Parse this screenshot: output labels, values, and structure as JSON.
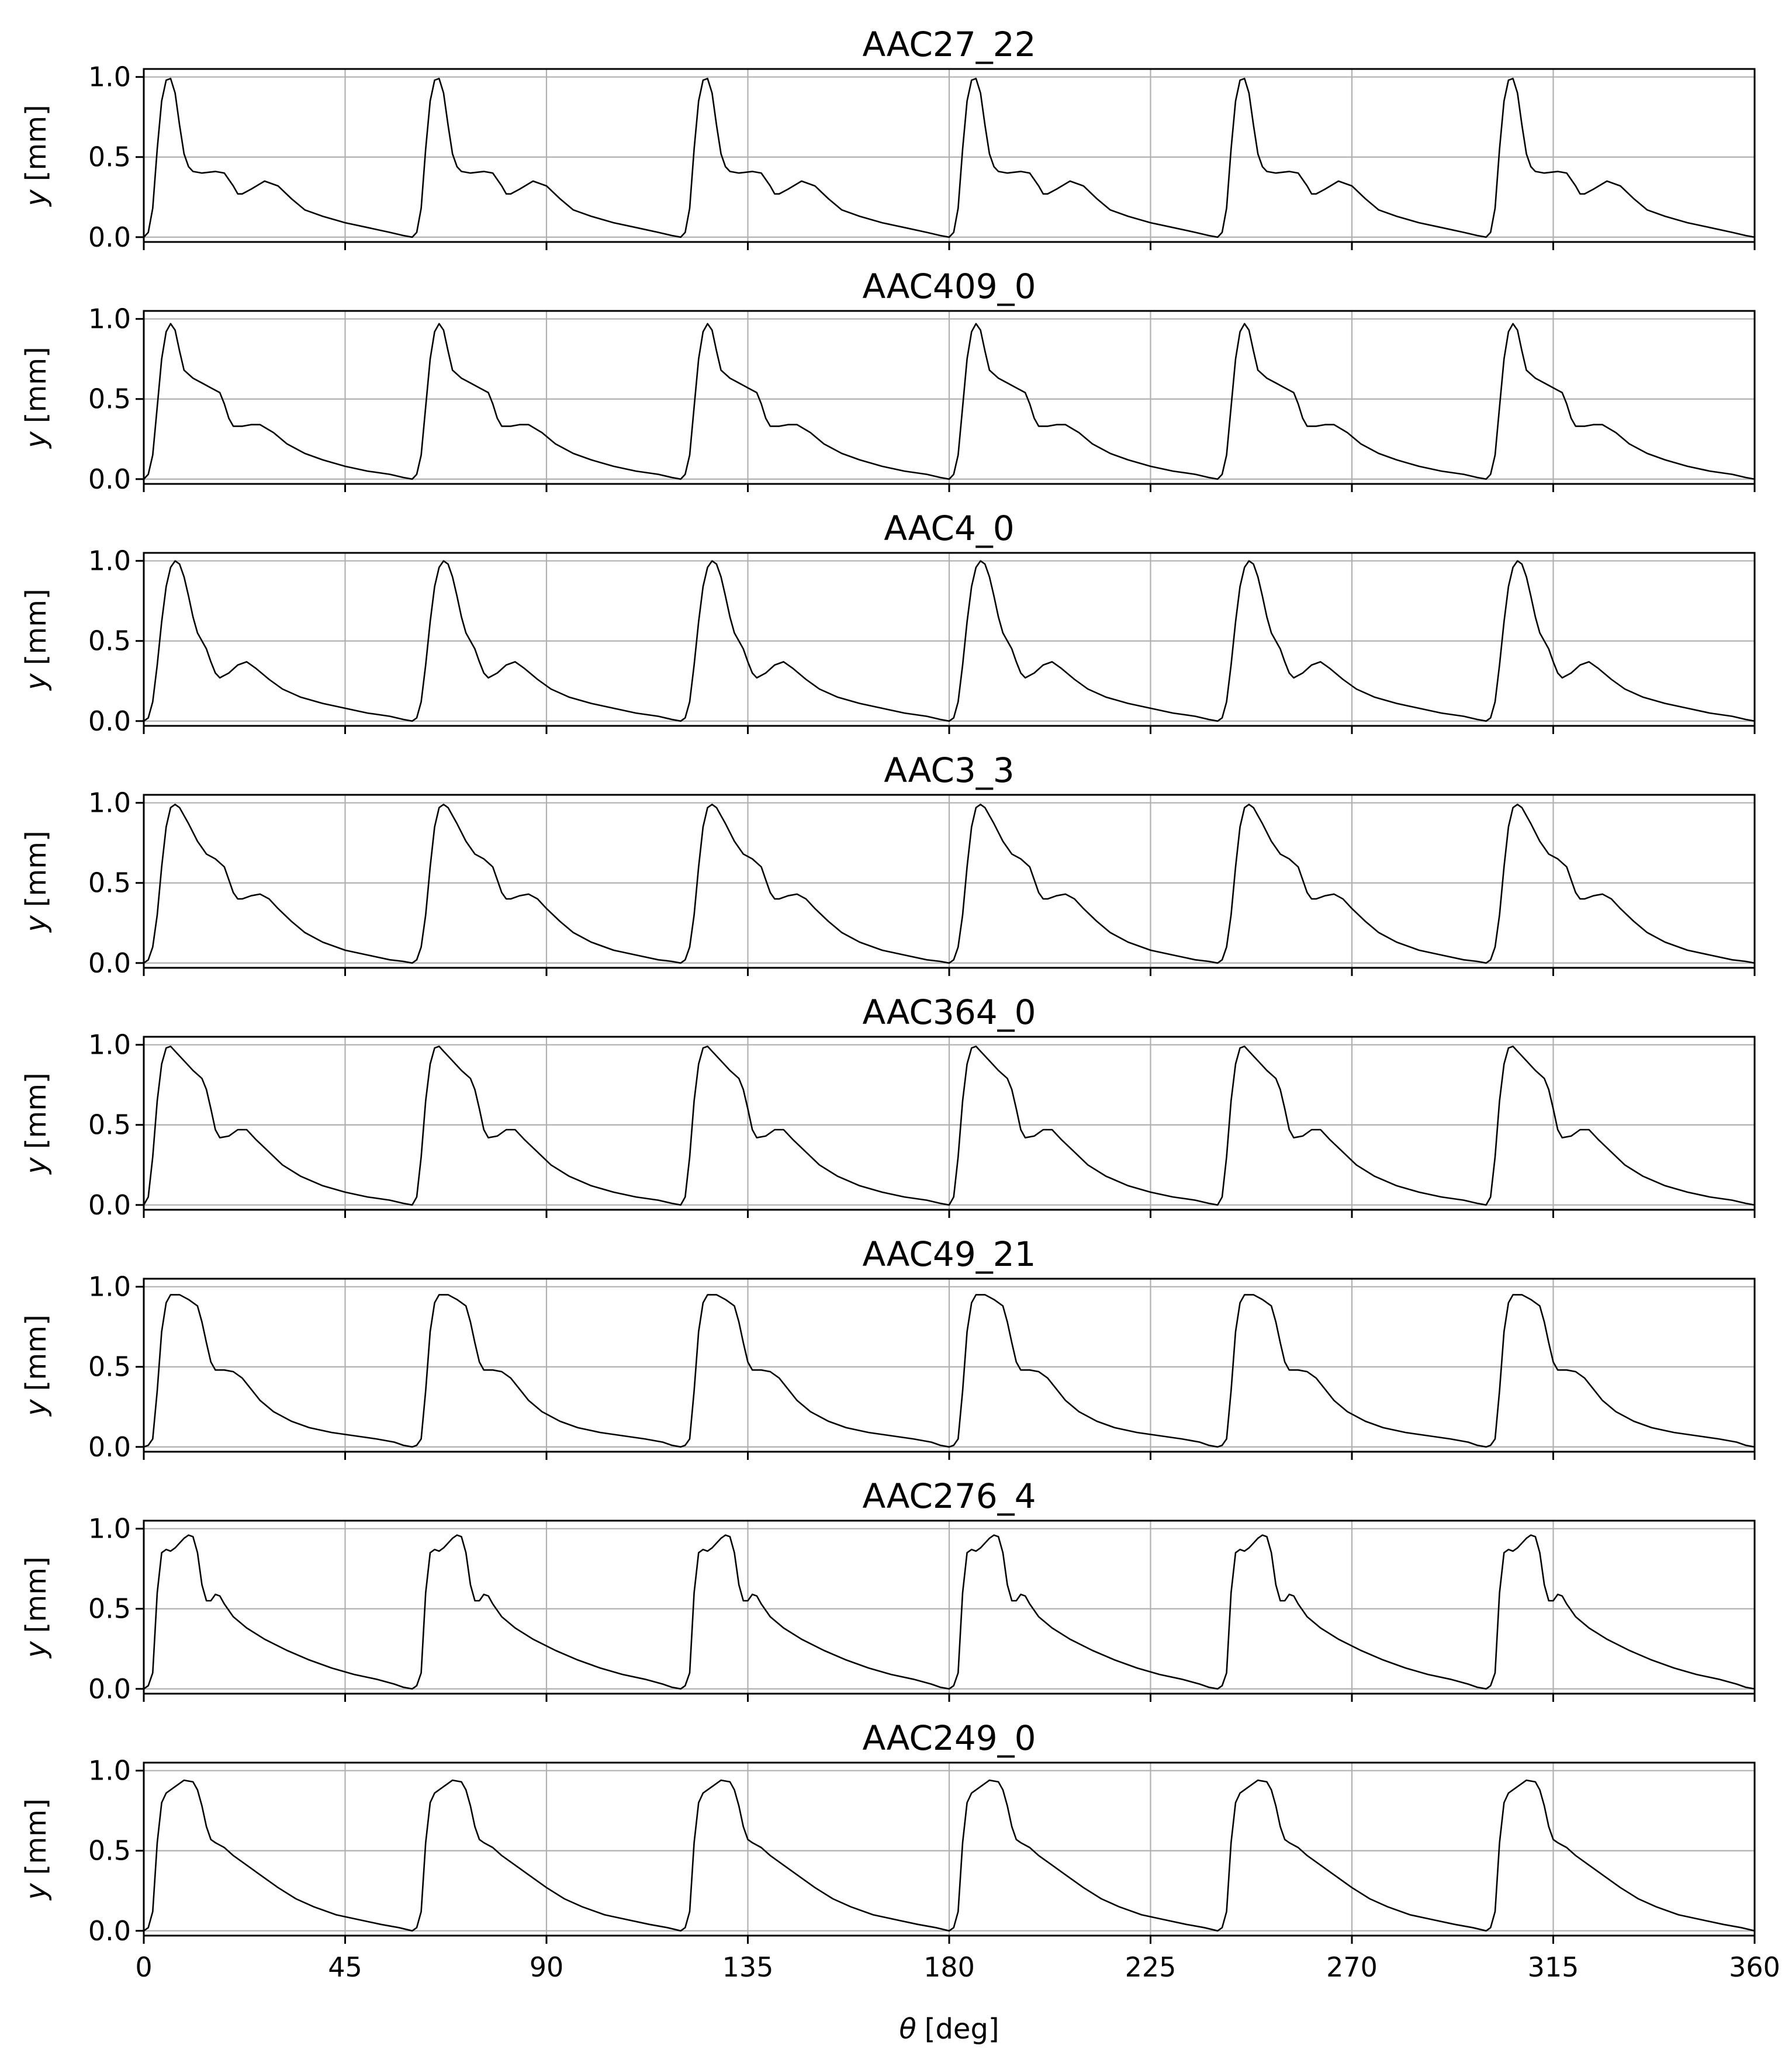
{
  "chart_data": {
    "type": "line",
    "x_range": [
      0,
      360
    ],
    "x_ticks": [
      0,
      45,
      90,
      135,
      180,
      225,
      270,
      315,
      360
    ],
    "y_range": [
      -0.03,
      1.05
    ],
    "y_ticks": [
      0.0,
      0.5,
      1.0
    ],
    "y_tick_labels": [
      "0.0",
      "0.5",
      "1.0"
    ],
    "xlabel_symbol": "θ",
    "xlabel_unit": "[deg]",
    "ylabel_symbol": "y",
    "ylabel_unit": "[mm]",
    "grid": true,
    "period_deg": 60,
    "panels": [
      {
        "title": "AAC27_22",
        "cycle": [
          [
            0,
            0.0
          ],
          [
            1,
            0.03
          ],
          [
            2,
            0.18
          ],
          [
            3,
            0.55
          ],
          [
            4,
            0.85
          ],
          [
            5,
            0.98
          ],
          [
            6,
            0.99
          ],
          [
            7,
            0.9
          ],
          [
            8,
            0.7
          ],
          [
            9,
            0.52
          ],
          [
            10,
            0.44
          ],
          [
            11,
            0.41
          ],
          [
            13,
            0.4
          ],
          [
            16,
            0.41
          ],
          [
            18,
            0.4
          ],
          [
            20,
            0.32
          ],
          [
            21,
            0.27
          ],
          [
            22,
            0.27
          ],
          [
            24,
            0.3
          ],
          [
            27,
            0.35
          ],
          [
            30,
            0.32
          ],
          [
            33,
            0.24
          ],
          [
            36,
            0.17
          ],
          [
            40,
            0.13
          ],
          [
            45,
            0.09
          ],
          [
            50,
            0.06
          ],
          [
            55,
            0.03
          ],
          [
            58,
            0.01
          ],
          [
            60,
            0.0
          ]
        ]
      },
      {
        "title": "AAC409_0",
        "cycle": [
          [
            0,
            0.0
          ],
          [
            1,
            0.03
          ],
          [
            2,
            0.15
          ],
          [
            3,
            0.45
          ],
          [
            4,
            0.75
          ],
          [
            5,
            0.92
          ],
          [
            6,
            0.97
          ],
          [
            7,
            0.93
          ],
          [
            8,
            0.8
          ],
          [
            9,
            0.68
          ],
          [
            11,
            0.63
          ],
          [
            13,
            0.6
          ],
          [
            15,
            0.57
          ],
          [
            17,
            0.54
          ],
          [
            18,
            0.47
          ],
          [
            19,
            0.38
          ],
          [
            20,
            0.33
          ],
          [
            22,
            0.33
          ],
          [
            24,
            0.34
          ],
          [
            26,
            0.34
          ],
          [
            29,
            0.29
          ],
          [
            32,
            0.22
          ],
          [
            36,
            0.16
          ],
          [
            40,
            0.12
          ],
          [
            45,
            0.08
          ],
          [
            50,
            0.05
          ],
          [
            55,
            0.03
          ],
          [
            58,
            0.01
          ],
          [
            60,
            0.0
          ]
        ]
      },
      {
        "title": "AAC4_0",
        "cycle": [
          [
            0,
            0.0
          ],
          [
            1,
            0.02
          ],
          [
            2,
            0.12
          ],
          [
            3,
            0.35
          ],
          [
            4,
            0.62
          ],
          [
            5,
            0.84
          ],
          [
            6,
            0.96
          ],
          [
            7,
            1.0
          ],
          [
            8,
            0.98
          ],
          [
            9,
            0.9
          ],
          [
            10,
            0.78
          ],
          [
            11,
            0.65
          ],
          [
            12,
            0.55
          ],
          [
            14,
            0.45
          ],
          [
            15,
            0.37
          ],
          [
            16,
            0.3
          ],
          [
            17,
            0.27
          ],
          [
            19,
            0.3
          ],
          [
            21,
            0.35
          ],
          [
            23,
            0.37
          ],
          [
            25,
            0.33
          ],
          [
            28,
            0.26
          ],
          [
            31,
            0.2
          ],
          [
            35,
            0.15
          ],
          [
            40,
            0.11
          ],
          [
            45,
            0.08
          ],
          [
            50,
            0.05
          ],
          [
            55,
            0.03
          ],
          [
            58,
            0.01
          ],
          [
            60,
            0.0
          ]
        ]
      },
      {
        "title": "AAC3_3",
        "cycle": [
          [
            0,
            0.0
          ],
          [
            1,
            0.02
          ],
          [
            2,
            0.1
          ],
          [
            3,
            0.3
          ],
          [
            4,
            0.6
          ],
          [
            5,
            0.85
          ],
          [
            6,
            0.97
          ],
          [
            7,
            0.99
          ],
          [
            8,
            0.97
          ],
          [
            10,
            0.87
          ],
          [
            12,
            0.76
          ],
          [
            14,
            0.68
          ],
          [
            16,
            0.65
          ],
          [
            18,
            0.6
          ],
          [
            19,
            0.52
          ],
          [
            20,
            0.44
          ],
          [
            21,
            0.4
          ],
          [
            22,
            0.4
          ],
          [
            24,
            0.42
          ],
          [
            26,
            0.43
          ],
          [
            28,
            0.4
          ],
          [
            30,
            0.34
          ],
          [
            33,
            0.26
          ],
          [
            36,
            0.19
          ],
          [
            40,
            0.13
          ],
          [
            45,
            0.08
          ],
          [
            50,
            0.05
          ],
          [
            55,
            0.02
          ],
          [
            58,
            0.01
          ],
          [
            60,
            0.0
          ]
        ]
      },
      {
        "title": "AAC364_0",
        "cycle": [
          [
            0,
            0.0
          ],
          [
            1,
            0.05
          ],
          [
            2,
            0.3
          ],
          [
            3,
            0.65
          ],
          [
            4,
            0.88
          ],
          [
            5,
            0.98
          ],
          [
            6,
            0.99
          ],
          [
            7,
            0.96
          ],
          [
            9,
            0.9
          ],
          [
            11,
            0.84
          ],
          [
            13,
            0.79
          ],
          [
            14,
            0.72
          ],
          [
            15,
            0.6
          ],
          [
            16,
            0.47
          ],
          [
            17,
            0.42
          ],
          [
            19,
            0.43
          ],
          [
            21,
            0.47
          ],
          [
            23,
            0.47
          ],
          [
            25,
            0.41
          ],
          [
            28,
            0.33
          ],
          [
            31,
            0.25
          ],
          [
            35,
            0.18
          ],
          [
            40,
            0.12
          ],
          [
            45,
            0.08
          ],
          [
            50,
            0.05
          ],
          [
            55,
            0.03
          ],
          [
            58,
            0.01
          ],
          [
            60,
            0.0
          ]
        ]
      },
      {
        "title": "AAC49_21",
        "cycle": [
          [
            0,
            0.0
          ],
          [
            1,
            0.01
          ],
          [
            2,
            0.05
          ],
          [
            3,
            0.35
          ],
          [
            4,
            0.72
          ],
          [
            5,
            0.9
          ],
          [
            6,
            0.95
          ],
          [
            8,
            0.95
          ],
          [
            10,
            0.92
          ],
          [
            12,
            0.88
          ],
          [
            13,
            0.78
          ],
          [
            14,
            0.65
          ],
          [
            15,
            0.53
          ],
          [
            16,
            0.48
          ],
          [
            18,
            0.48
          ],
          [
            20,
            0.47
          ],
          [
            22,
            0.43
          ],
          [
            24,
            0.36
          ],
          [
            26,
            0.29
          ],
          [
            29,
            0.22
          ],
          [
            33,
            0.16
          ],
          [
            37,
            0.12
          ],
          [
            42,
            0.09
          ],
          [
            47,
            0.07
          ],
          [
            52,
            0.05
          ],
          [
            56,
            0.03
          ],
          [
            58,
            0.01
          ],
          [
            60,
            0.0
          ]
        ]
      },
      {
        "title": "AAC276_4",
        "cycle": [
          [
            0,
            0.0
          ],
          [
            1,
            0.02
          ],
          [
            2,
            0.1
          ],
          [
            3,
            0.6
          ],
          [
            4,
            0.85
          ],
          [
            5,
            0.87
          ],
          [
            6,
            0.86
          ],
          [
            7,
            0.88
          ],
          [
            8,
            0.91
          ],
          [
            9,
            0.94
          ],
          [
            10,
            0.96
          ],
          [
            11,
            0.95
          ],
          [
            12,
            0.85
          ],
          [
            13,
            0.65
          ],
          [
            14,
            0.55
          ],
          [
            15,
            0.55
          ],
          [
            16,
            0.59
          ],
          [
            17,
            0.58
          ],
          [
            18,
            0.53
          ],
          [
            20,
            0.45
          ],
          [
            23,
            0.38
          ],
          [
            27,
            0.31
          ],
          [
            32,
            0.24
          ],
          [
            37,
            0.18
          ],
          [
            42,
            0.13
          ],
          [
            47,
            0.09
          ],
          [
            52,
            0.06
          ],
          [
            56,
            0.03
          ],
          [
            58,
            0.01
          ],
          [
            60,
            0.0
          ]
        ]
      },
      {
        "title": "AAC249_0",
        "cycle": [
          [
            0,
            0.0
          ],
          [
            1,
            0.02
          ],
          [
            2,
            0.12
          ],
          [
            3,
            0.55
          ],
          [
            4,
            0.8
          ],
          [
            5,
            0.86
          ],
          [
            7,
            0.9
          ],
          [
            9,
            0.94
          ],
          [
            11,
            0.93
          ],
          [
            12,
            0.88
          ],
          [
            13,
            0.78
          ],
          [
            14,
            0.65
          ],
          [
            15,
            0.57
          ],
          [
            16,
            0.55
          ],
          [
            18,
            0.52
          ],
          [
            20,
            0.47
          ],
          [
            23,
            0.41
          ],
          [
            26,
            0.35
          ],
          [
            30,
            0.27
          ],
          [
            34,
            0.2
          ],
          [
            38,
            0.15
          ],
          [
            43,
            0.1
          ],
          [
            48,
            0.07
          ],
          [
            53,
            0.04
          ],
          [
            57,
            0.02
          ],
          [
            60,
            0.0
          ]
        ]
      }
    ]
  }
}
